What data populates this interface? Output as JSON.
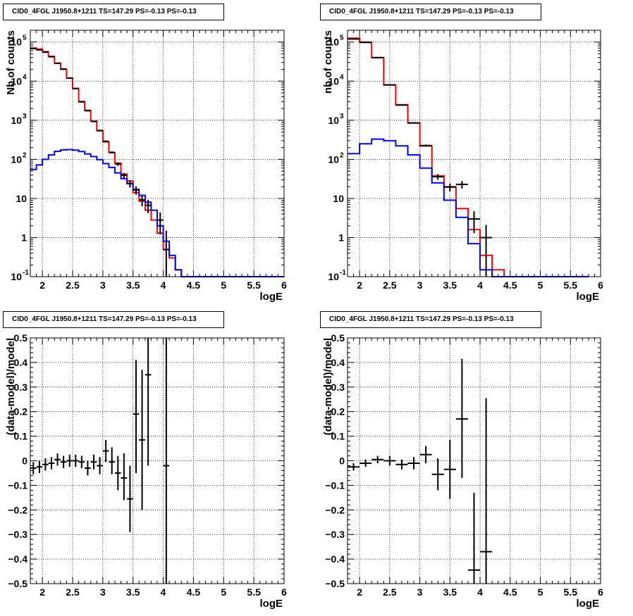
{
  "colors": {
    "data": "#000000",
    "total_model": "#ff0000",
    "component": "#0000ff"
  },
  "chart_data": [
    {
      "type": "histogram",
      "title": "CID0_4FGL J1950.8+1211 TS=147.29 PS=-0.13 PS=-0.13",
      "xlabel": "logE",
      "ylabel": "Nb of counts",
      "xlim": [
        1.8,
        6.0
      ],
      "ylim": [
        0.1,
        200000
      ],
      "yscale": "log",
      "grid": true,
      "xticks": [
        "2",
        "2.5",
        "3",
        "3.5",
        "4",
        "4.5",
        "5",
        "5.5",
        "6"
      ],
      "yticks": [
        "10^-1",
        "1",
        "10",
        "10^2",
        "10^3",
        "10^4",
        "10^5"
      ],
      "bin_edges": [
        1.8,
        1.9,
        2.0,
        2.1,
        2.2,
        2.3,
        2.4,
        2.5,
        2.6,
        2.7,
        2.8,
        2.9,
        3.0,
        3.1,
        3.2,
        3.3,
        3.4,
        3.5,
        3.6,
        3.7,
        3.8,
        3.9,
        4.0,
        4.1,
        4.2,
        4.3,
        4.4,
        4.5,
        4.6,
        4.7,
        4.8,
        4.9,
        5.0,
        5.1,
        5.2,
        5.3,
        5.4,
        5.5,
        5.6,
        5.7,
        5.8,
        5.9,
        6.0
      ],
      "series": [
        {
          "role": "total_model",
          "values": [
            70000,
            66000,
            57000,
            43000,
            29000,
            20000,
            12000,
            6500,
            3000,
            1800,
            950,
            550,
            280,
            150,
            80,
            42,
            28,
            14,
            8.5,
            5,
            2.8,
            1.3,
            0.5,
            0.3,
            0.15,
            0.1,
            0.1,
            0.1,
            0.1,
            0.1,
            0.1,
            0.1,
            0.1,
            0.1,
            0.1,
            0.1,
            0.1,
            0.1,
            0.1,
            0.1,
            0.1,
            0.1
          ]
        },
        {
          "role": "component",
          "values": [
            55,
            72,
            100,
            130,
            160,
            175,
            178,
            172,
            158,
            138,
            118,
            98,
            78,
            62,
            45,
            32,
            24,
            17,
            12,
            8,
            5,
            2,
            0.8,
            0.35,
            0.15,
            0.1,
            0.1,
            0.1,
            0.1,
            0.1,
            0.1,
            0.1,
            0.1,
            0.1,
            0.1,
            0.1,
            0.1,
            0.1,
            0.1,
            0.1,
            0.1,
            0.1
          ]
        }
      ],
      "points": [
        {
          "x": 1.85,
          "y": 68000,
          "ylo": 67500,
          "yhi": 68500
        },
        {
          "x": 1.95,
          "y": 63000,
          "ylo": 62500,
          "yhi": 63500
        },
        {
          "x": 2.05,
          "y": 55000,
          "ylo": 54500,
          "yhi": 55500
        },
        {
          "x": 2.15,
          "y": 42000,
          "ylo": 41600,
          "yhi": 42400
        },
        {
          "x": 2.25,
          "y": 28500,
          "ylo": 28200,
          "yhi": 28800
        },
        {
          "x": 2.35,
          "y": 20500,
          "ylo": 20200,
          "yhi": 20800
        },
        {
          "x": 2.45,
          "y": 12000,
          "ylo": 11800,
          "yhi": 12200
        },
        {
          "x": 2.55,
          "y": 6500,
          "ylo": 6400,
          "yhi": 6600
        },
        {
          "x": 2.65,
          "y": 2950,
          "ylo": 2900,
          "yhi": 3000
        },
        {
          "x": 2.75,
          "y": 1750,
          "ylo": 1700,
          "yhi": 1800
        },
        {
          "x": 2.85,
          "y": 930,
          "ylo": 900,
          "yhi": 960
        },
        {
          "x": 2.95,
          "y": 540,
          "ylo": 520,
          "yhi": 560
        },
        {
          "x": 3.05,
          "y": 290,
          "ylo": 275,
          "yhi": 305
        },
        {
          "x": 3.15,
          "y": 150,
          "ylo": 140,
          "yhi": 160
        },
        {
          "x": 3.25,
          "y": 76,
          "ylo": 68,
          "yhi": 84
        },
        {
          "x": 3.35,
          "y": 39,
          "ylo": 33,
          "yhi": 45
        },
        {
          "x": 3.45,
          "y": 24,
          "ylo": 19,
          "yhi": 29
        },
        {
          "x": 3.55,
          "y": 16.5,
          "ylo": 12.5,
          "yhi": 20.5
        },
        {
          "x": 3.65,
          "y": 9.2,
          "ylo": 6.3,
          "yhi": 12.1
        },
        {
          "x": 3.75,
          "y": 6.7,
          "ylo": 4.2,
          "yhi": 9.2
        },
        {
          "x": 3.95,
          "y": 2.8,
          "ylo": 1.2,
          "yhi": 4.4
        },
        {
          "x": 4.05,
          "y": 0.49,
          "ylo": 0.1,
          "yhi": 1.5
        }
      ]
    },
    {
      "type": "histogram",
      "title": "CID0_4FGL J1950.8+1211 TS=147.29 PS=-0.13 PS=-0.13",
      "xlabel": "logE",
      "ylabel": "nb of counts",
      "xlim": [
        1.8,
        6.0
      ],
      "ylim": [
        0.1,
        200000
      ],
      "yscale": "log",
      "grid": true,
      "xticks": [
        "2",
        "2.5",
        "3",
        "3.5",
        "4",
        "4.5",
        "5",
        "5.5",
        "6"
      ],
      "yticks": [
        "10^-1",
        "1",
        "10",
        "10^2",
        "10^3",
        "10^4",
        "10^5"
      ],
      "bin_edges": [
        1.8,
        2.0,
        2.2,
        2.4,
        2.6,
        2.8,
        3.0,
        3.2,
        3.4,
        3.6,
        3.8,
        4.0,
        4.2,
        4.4,
        4.6,
        4.8,
        5.0,
        5.2,
        5.4,
        5.6,
        5.8,
        6.0
      ],
      "series": [
        {
          "role": "total_model",
          "values": [
            125000,
            100000,
            40000,
            8000,
            2500,
            860,
            220,
            38,
            20,
            5.5,
            1.6,
            0.35,
            0.15,
            0.1,
            0.1,
            0.1,
            0.1,
            0.1,
            0.1,
            0.1
          ]
        },
        {
          "role": "component",
          "values": [
            140,
            250,
            330,
            300,
            220,
            130,
            60,
            25,
            9,
            3.3,
            0.7,
            0.15,
            0.1,
            0.1,
            0.1,
            0.1,
            0.1,
            0.1,
            0.1,
            0.1
          ]
        }
      ],
      "points": [
        {
          "x": 1.9,
          "y": 120000,
          "ylo": 119700,
          "yhi": 120300
        },
        {
          "x": 2.1,
          "y": 98000,
          "ylo": 97700,
          "yhi": 98300
        },
        {
          "x": 2.3,
          "y": 40000,
          "ylo": 39800,
          "yhi": 40200
        },
        {
          "x": 2.5,
          "y": 8000,
          "ylo": 7900,
          "yhi": 8100
        },
        {
          "x": 2.7,
          "y": 2450,
          "ylo": 2400,
          "yhi": 2500
        },
        {
          "x": 2.9,
          "y": 850,
          "ylo": 820,
          "yhi": 880
        },
        {
          "x": 3.1,
          "y": 225,
          "ylo": 210,
          "yhi": 240
        },
        {
          "x": 3.3,
          "y": 36,
          "ylo": 30,
          "yhi": 42
        },
        {
          "x": 3.5,
          "y": 19.5,
          "ylo": 15,
          "yhi": 24
        },
        {
          "x": 3.7,
          "y": 23,
          "ylo": 18,
          "yhi": 28
        },
        {
          "x": 3.9,
          "y": 3.0,
          "ylo": 1.3,
          "yhi": 4.7
        },
        {
          "x": 4.1,
          "y": 1.0,
          "ylo": 0.1,
          "yhi": 2.1
        }
      ]
    },
    {
      "type": "scatter",
      "title": "CID0_4FGL J1950.8+1211 TS=147.29 PS=-0.13 PS=-0.13",
      "xlabel": "logE",
      "ylabel": "(data-model)/model",
      "xlim": [
        1.8,
        6.0
      ],
      "ylim": [
        -0.5,
        0.5
      ],
      "grid": true,
      "xticks": [
        "2",
        "2.5",
        "3",
        "3.5",
        "4",
        "4.5",
        "5",
        "5.5",
        "6"
      ],
      "yticks": [
        "-0.5",
        "-0.4",
        "-0.3",
        "-0.2",
        "-0.1",
        "0",
        "0.1",
        "0.2",
        "0.3",
        "0.4",
        "0.5"
      ],
      "x_halfwidth": 0.05,
      "points": [
        {
          "x": 1.85,
          "y": -0.03,
          "ylo": -0.055,
          "yhi": -0.005
        },
        {
          "x": 1.95,
          "y": -0.025,
          "ylo": -0.05,
          "yhi": 0.0
        },
        {
          "x": 2.05,
          "y": -0.015,
          "ylo": -0.04,
          "yhi": 0.01
        },
        {
          "x": 2.15,
          "y": -0.01,
          "ylo": -0.035,
          "yhi": 0.015
        },
        {
          "x": 2.25,
          "y": 0.005,
          "ylo": -0.02,
          "yhi": 0.03
        },
        {
          "x": 2.35,
          "y": -0.005,
          "ylo": -0.03,
          "yhi": 0.02
        },
        {
          "x": 2.45,
          "y": 0.0,
          "ylo": -0.025,
          "yhi": 0.025
        },
        {
          "x": 2.55,
          "y": 0.0,
          "ylo": -0.025,
          "yhi": 0.025
        },
        {
          "x": 2.65,
          "y": -0.005,
          "ylo": -0.03,
          "yhi": 0.02
        },
        {
          "x": 2.75,
          "y": -0.03,
          "ylo": -0.06,
          "yhi": 0.0
        },
        {
          "x": 2.85,
          "y": -0.005,
          "ylo": -0.035,
          "yhi": 0.025
        },
        {
          "x": 2.95,
          "y": -0.02,
          "ylo": -0.055,
          "yhi": 0.015
        },
        {
          "x": 3.05,
          "y": 0.04,
          "ylo": -0.005,
          "yhi": 0.085
        },
        {
          "x": 3.15,
          "y": -0.005,
          "ylo": -0.055,
          "yhi": 0.055
        },
        {
          "x": 3.25,
          "y": -0.05,
          "ylo": -0.12,
          "yhi": 0.02
        },
        {
          "x": 3.35,
          "y": -0.07,
          "ylo": -0.16,
          "yhi": 0.03
        },
        {
          "x": 3.45,
          "y": -0.155,
          "ylo": -0.29,
          "yhi": -0.02
        },
        {
          "x": 3.55,
          "y": 0.19,
          "ylo": -0.05,
          "yhi": 0.41
        },
        {
          "x": 3.65,
          "y": 0.085,
          "ylo": -0.2,
          "yhi": 0.37
        },
        {
          "x": 3.75,
          "y": 0.35,
          "ylo": -0.02,
          "yhi": 0.5
        },
        {
          "x": 4.05,
          "y": -0.02,
          "ylo": -0.5,
          "yhi": 0.5
        }
      ]
    },
    {
      "type": "scatter",
      "title": "CID0_4FGL J1950.8+1211 TS=147.29 PS=-0.13 PS=-0.13",
      "xlabel": "logE",
      "ylabel": "(data-model)/model",
      "xlim": [
        1.8,
        6.0
      ],
      "ylim": [
        -0.5,
        0.5
      ],
      "grid": true,
      "xticks": [
        "2",
        "2.5",
        "3",
        "3.5",
        "4",
        "4.5",
        "5",
        "5.5",
        "6"
      ],
      "yticks": [
        "-0.5",
        "-0.4",
        "-0.3",
        "-0.2",
        "-0.1",
        "0",
        "0.1",
        "0.2",
        "0.3",
        "0.4",
        "0.5"
      ],
      "x_halfwidth": 0.1,
      "points": [
        {
          "x": 1.9,
          "y": -0.025,
          "ylo": -0.04,
          "yhi": -0.01
        },
        {
          "x": 2.1,
          "y": -0.01,
          "ylo": -0.025,
          "yhi": 0.005
        },
        {
          "x": 2.3,
          "y": 0.005,
          "ylo": -0.01,
          "yhi": 0.02
        },
        {
          "x": 2.5,
          "y": 0.0,
          "ylo": -0.02,
          "yhi": 0.02
        },
        {
          "x": 2.7,
          "y": -0.015,
          "ylo": -0.035,
          "yhi": 0.005
        },
        {
          "x": 2.9,
          "y": -0.01,
          "ylo": -0.035,
          "yhi": 0.015
        },
        {
          "x": 3.1,
          "y": 0.025,
          "ylo": -0.01,
          "yhi": 0.06
        },
        {
          "x": 3.3,
          "y": -0.055,
          "ylo": -0.12,
          "yhi": 0.01
        },
        {
          "x": 3.5,
          "y": -0.035,
          "ylo": -0.155,
          "yhi": 0.085
        },
        {
          "x": 3.7,
          "y": 0.17,
          "ylo": -0.07,
          "yhi": 0.415
        },
        {
          "x": 3.9,
          "y": -0.445,
          "ylo": -0.5,
          "yhi": -0.13
        },
        {
          "x": 4.1,
          "y": -0.37,
          "ylo": -0.5,
          "yhi": 0.255
        }
      ]
    }
  ]
}
